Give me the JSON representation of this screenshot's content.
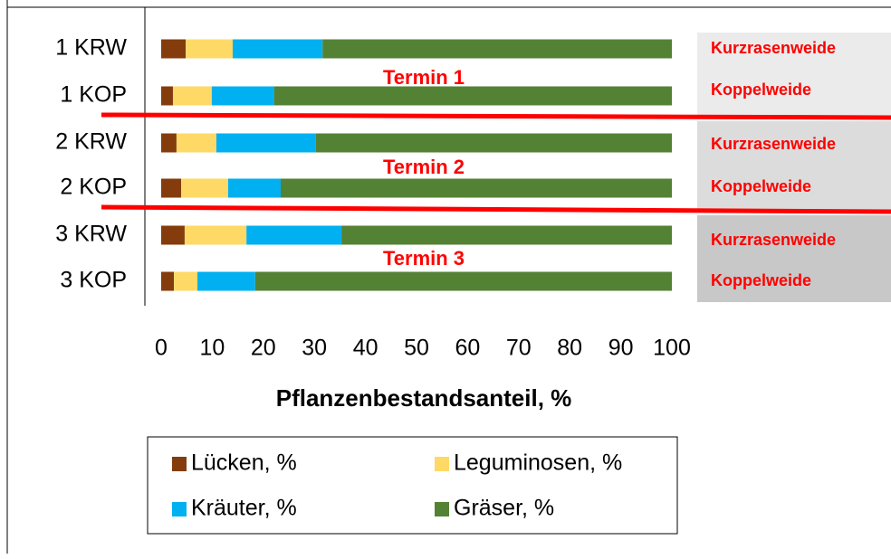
{
  "chart_data": {
    "type": "bar",
    "orientation": "horizontal",
    "stacked": true,
    "categories": [
      "1 KRW",
      "1 KOP",
      "2 KRW",
      "2 KOP",
      "3 KRW",
      "3 KOP"
    ],
    "series": [
      {
        "name": "Lücken, %",
        "color": "#843c0c",
        "values": [
          4.8,
          2.3,
          3.0,
          3.9,
          4.6,
          2.5
        ]
      },
      {
        "name": "Leguminosen, %",
        "color": "#ffd966",
        "values": [
          9.2,
          7.6,
          7.8,
          9.2,
          12.1,
          4.6
        ]
      },
      {
        "name": "Kräuter, %",
        "color": "#00b0f0",
        "values": [
          17.6,
          12.2,
          19.5,
          10.3,
          18.6,
          11.3
        ]
      },
      {
        "name": "Gräser, %",
        "color": "#548235",
        "values": [
          68.4,
          77.9,
          69.7,
          76.6,
          64.7,
          81.6
        ]
      }
    ],
    "xlim": [
      0,
      100
    ],
    "xticks": [
      0,
      10,
      20,
      30,
      40,
      50,
      60,
      70,
      80,
      90,
      100
    ],
    "xlabel": "Pflanzenbestandsanteil, %",
    "annotations": [
      "Termin 1",
      "Termin 2",
      "Termin 3"
    ],
    "group_labels": [
      "Kurzrasenweide",
      "Koppelweide",
      "Kurzrasenweide",
      "Koppelweide",
      "Kurzrasenweide",
      "Koppelweide"
    ]
  }
}
